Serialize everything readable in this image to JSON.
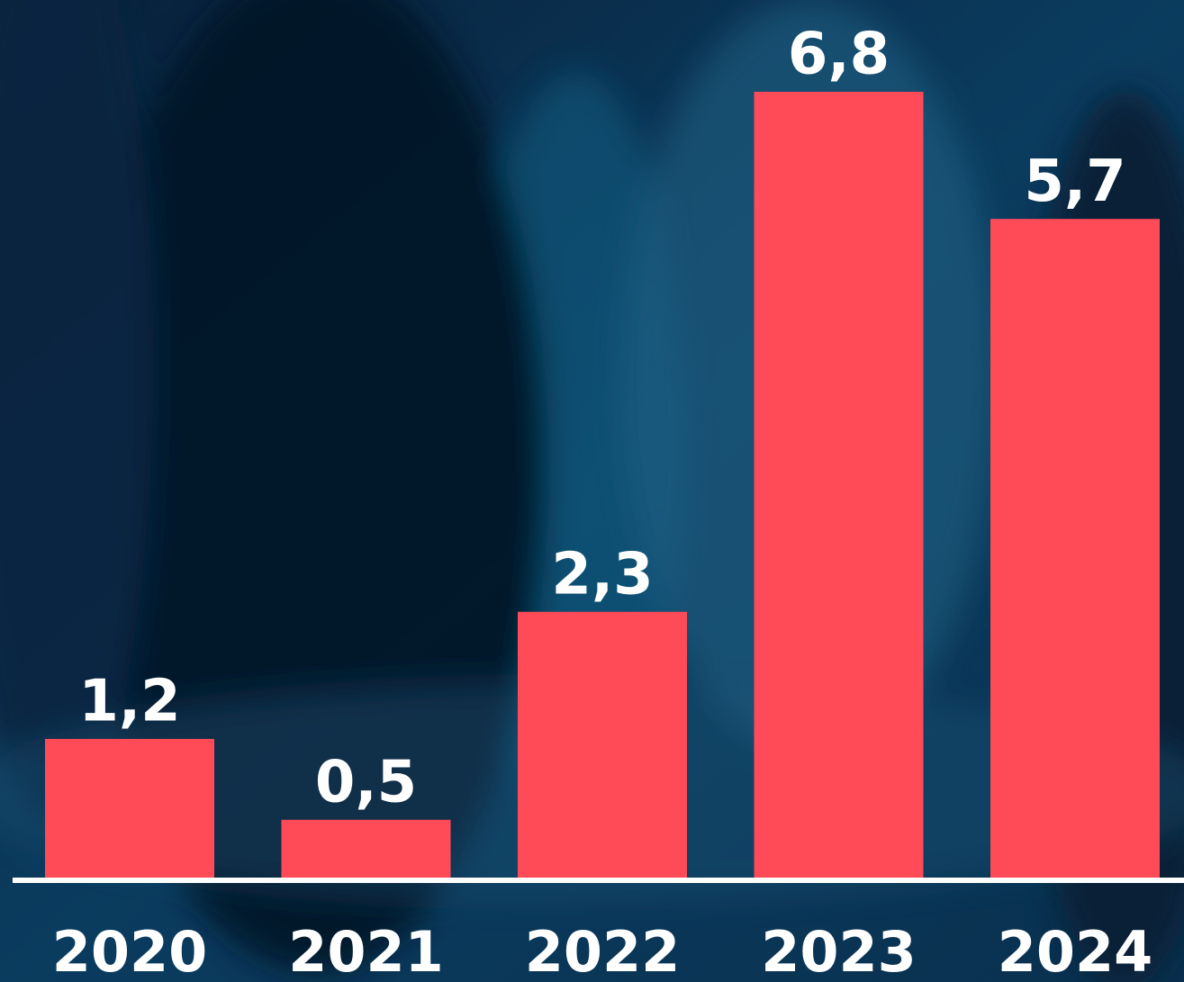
{
  "chart_data": {
    "type": "bar",
    "categories": [
      "2020",
      "2021",
      "2022",
      "2023",
      "2024"
    ],
    "values": [
      1.2,
      0.5,
      2.3,
      6.8,
      5.7
    ],
    "value_labels": [
      "1,2",
      "0,5",
      "2,3",
      "6,8",
      "5,7"
    ],
    "color": "#ff4a57"
  }
}
